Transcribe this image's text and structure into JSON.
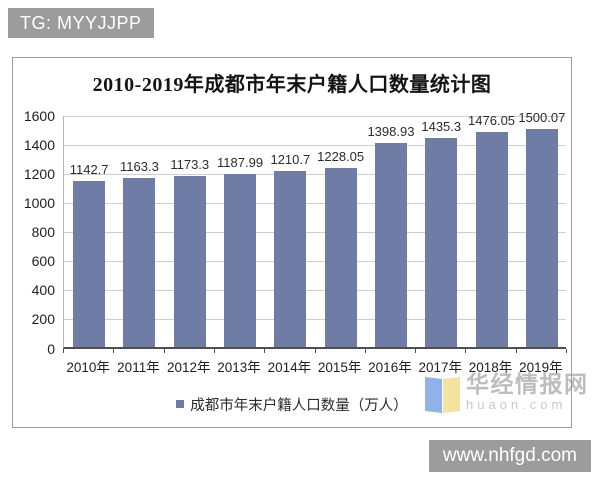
{
  "tags": {
    "top": "TG: MYYJJPP",
    "bottom": "www.nhfgd.com",
    "bg_color": "#9c9c9c"
  },
  "watermark": {
    "site_name": "华经情报网",
    "site_url": "huaon.com",
    "logo_left_color": "#8fb3e6",
    "logo_right_color": "#f3e3a0"
  },
  "chart_data": {
    "type": "bar",
    "title": "2010-2019年成都市年末户籍人口数量统计图",
    "categories": [
      "2010年",
      "2011年",
      "2012年",
      "2013年",
      "2014年",
      "2015年",
      "2016年",
      "2017年",
      "2018年",
      "2019年"
    ],
    "values": [
      1142.7,
      1163.3,
      1173.3,
      1187.99,
      1210.7,
      1228.05,
      1398.93,
      1435.3,
      1476.05,
      1500.07
    ],
    "value_labels": [
      "1142.7",
      "1163.3",
      "1173.3",
      "1187.99",
      "1210.7",
      "1228.05",
      "1398.93",
      "1435.3",
      "1476.05",
      "1500.07"
    ],
    "legend": "成都市年末户籍人口数量（万人）",
    "xlabel": "",
    "ylabel": "",
    "ylim": [
      0,
      1600
    ],
    "y_ticks": [
      0,
      200,
      400,
      600,
      800,
      1000,
      1200,
      1400,
      1600
    ],
    "grid": true,
    "legend_position": "bottom",
    "bar_color": "#6f7da6",
    "gridline_color": "#cfcfcf"
  }
}
